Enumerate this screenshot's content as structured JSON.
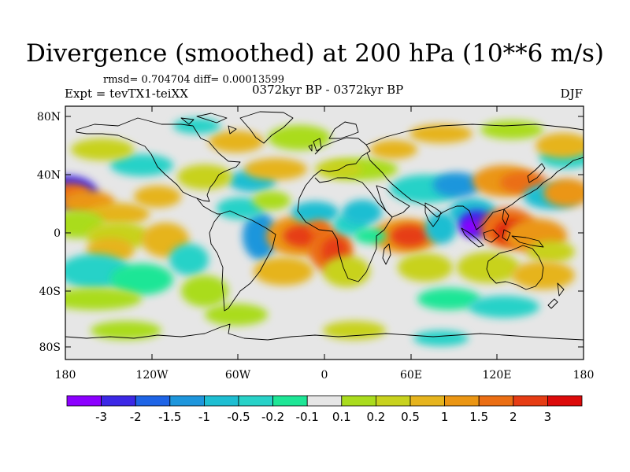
{
  "title": "Divergence (smoothed) at 200 hPa (10**6 m/s)",
  "stats": "rmsd= 0.704704 diff= 0.00013599",
  "experiment": "Expt = tevTX1-teiXX",
  "period": "0372kyr BP - 0372kyr BP",
  "season": "DJF",
  "lat_ticks": [
    "80N",
    "40N",
    "0",
    "40S",
    "80S"
  ],
  "lon_ticks": [
    "180",
    "120W",
    "60W",
    "0",
    "60E",
    "120E",
    "180"
  ],
  "colorbar": {
    "colors": [
      "#8c00ff",
      "#3c28e6",
      "#1e64e6",
      "#1e96dc",
      "#1ebed2",
      "#28d2c8",
      "#1ee696",
      "#e6e6e6",
      "#aadc1e",
      "#c8d21e",
      "#e6b41e",
      "#eb9614",
      "#eb6e14",
      "#e63c14",
      "#dc0a0a"
    ],
    "labels": [
      "-3",
      "-2",
      "-1.5",
      "-1",
      "-0.5",
      "-0.2",
      "-0.1",
      "0.1",
      "0.2",
      "0.5",
      "1",
      "1.5",
      "2",
      "3"
    ]
  },
  "colors": {
    "neutral": "#e6e6e6",
    "coast": "#000000"
  }
}
